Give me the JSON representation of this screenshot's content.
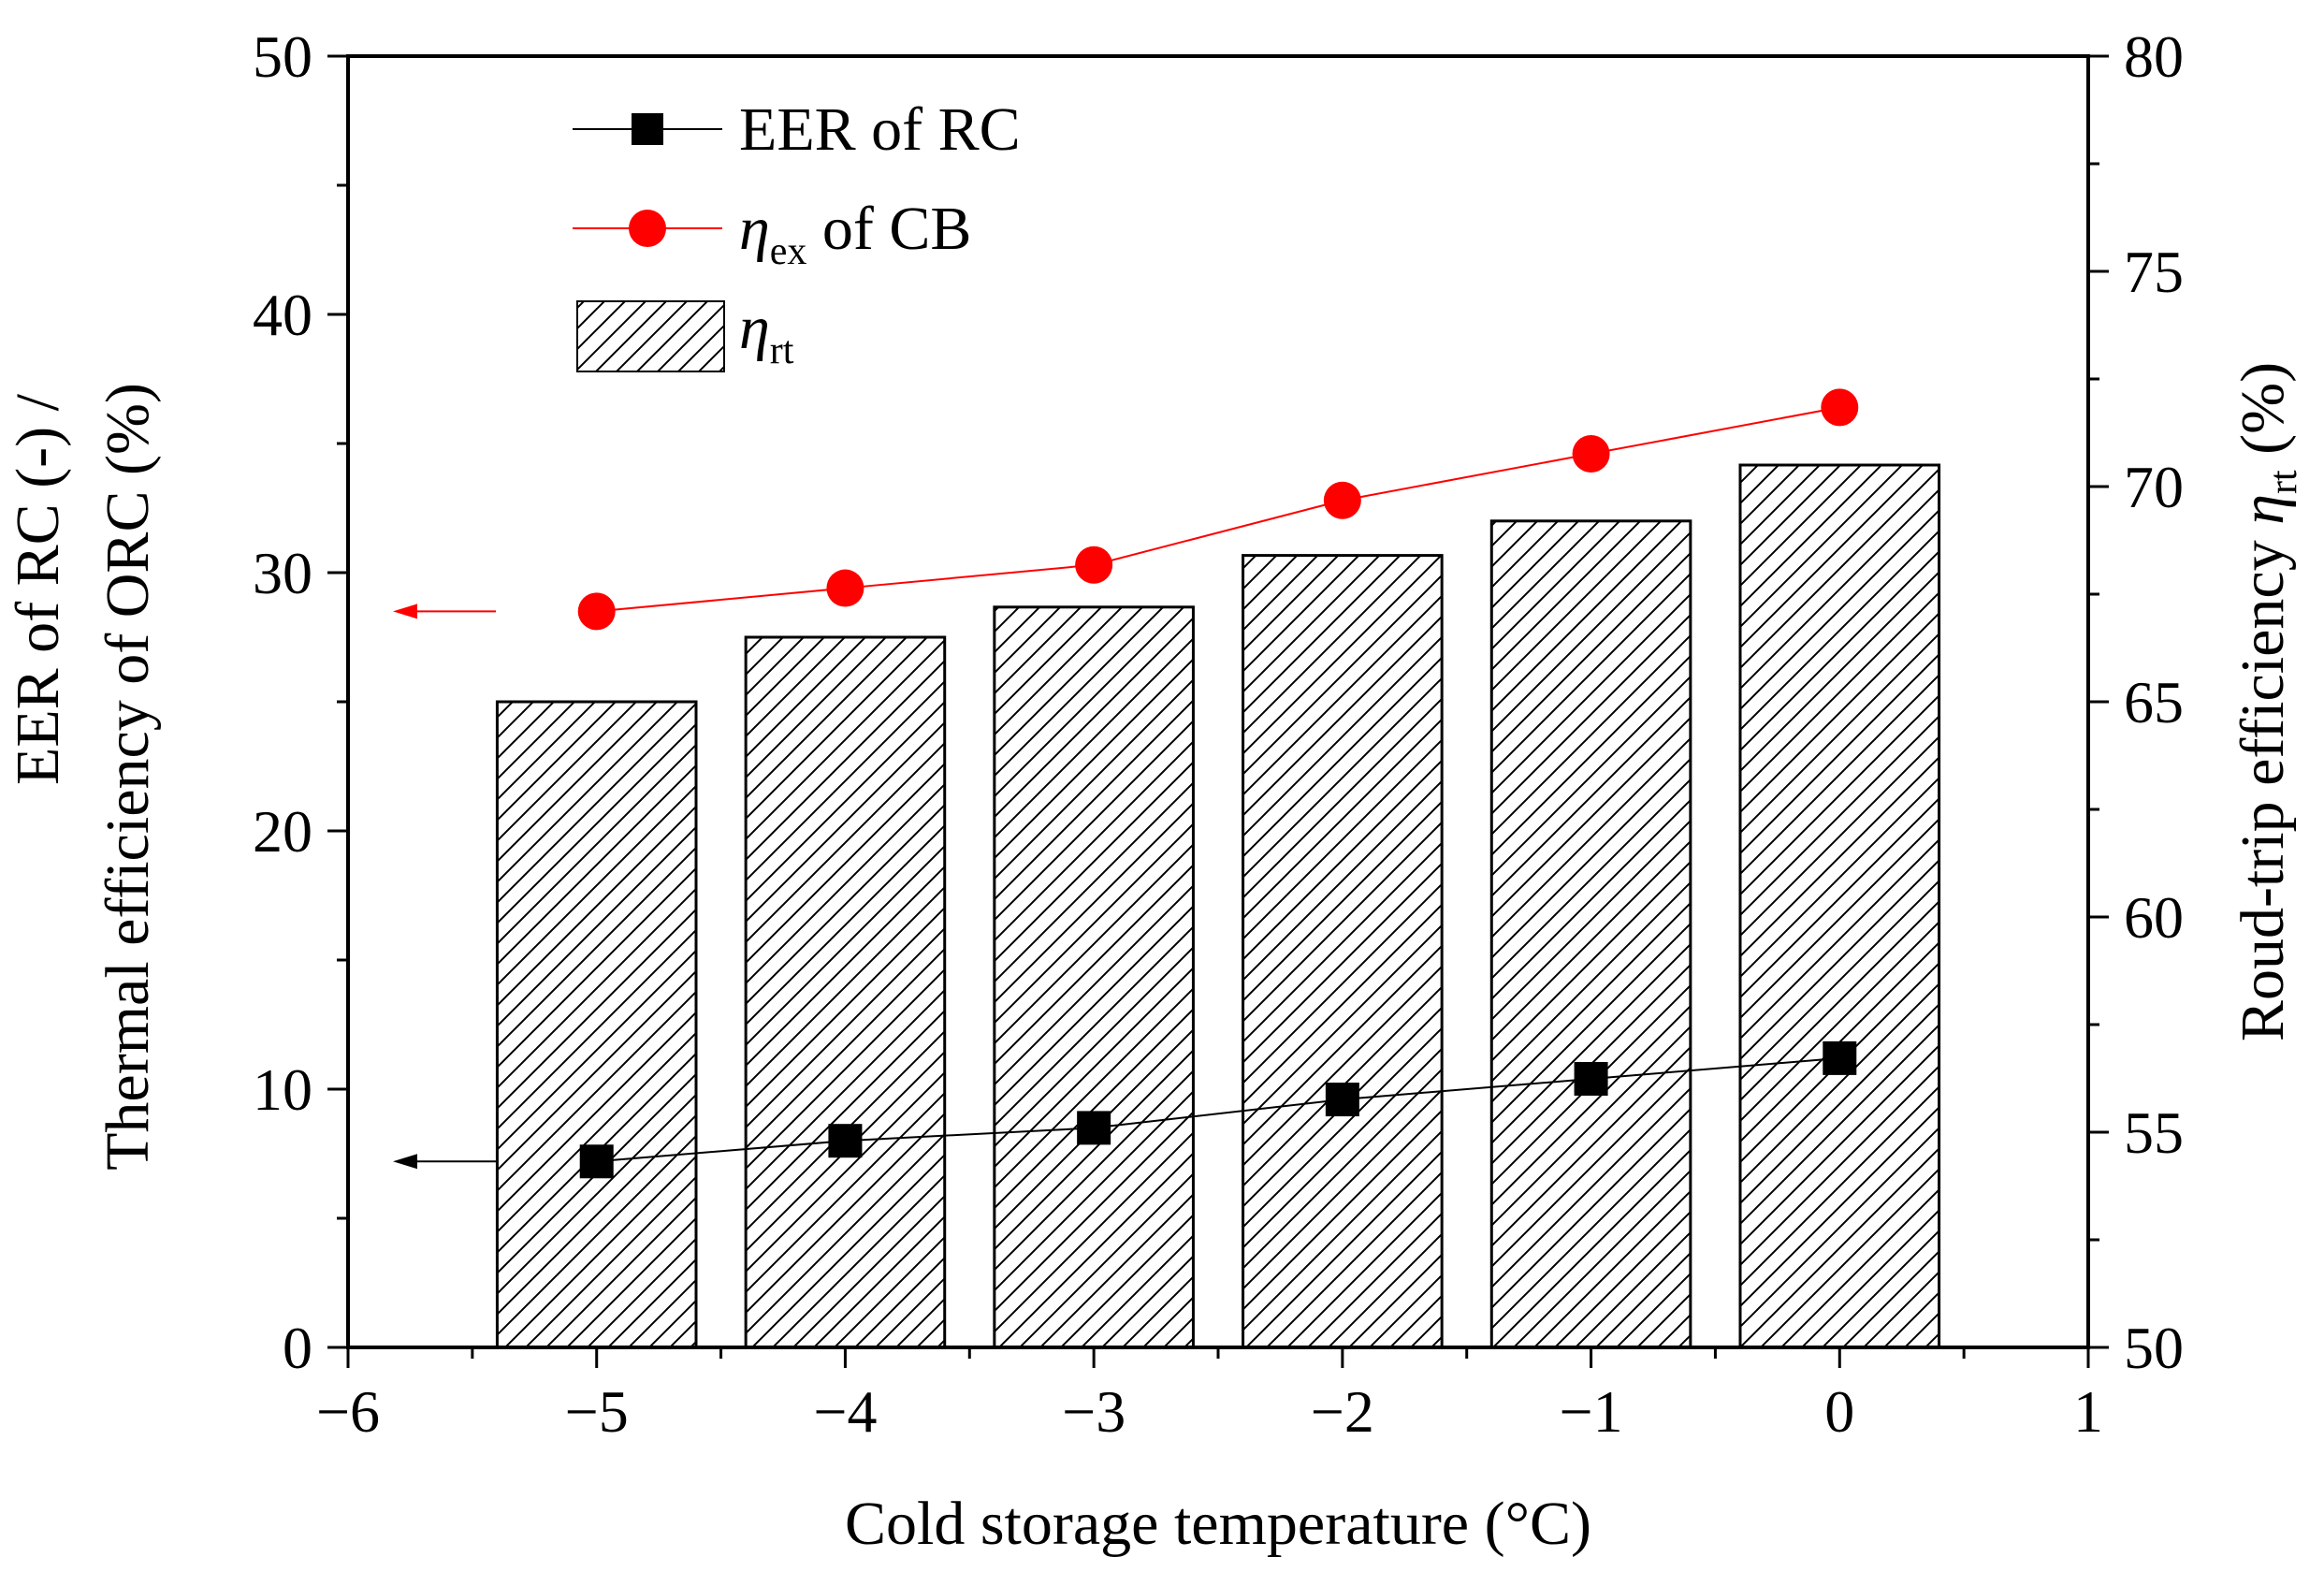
{
  "chart_data": {
    "type": "bar+line",
    "x_axis": {
      "label": "Cold storage temperature (°C)",
      "range": [
        -6,
        1
      ],
      "ticks": [
        -6,
        -5,
        -4,
        -3,
        -2,
        -1,
        0,
        1
      ],
      "tick_labels": [
        "−6",
        "−5",
        "−4",
        "−3",
        "−2",
        "−1",
        "0",
        "1"
      ]
    },
    "y_left": {
      "label_line1": "EER of RC (-) /",
      "label_line2": "Thermal efficiency of ORC (%)",
      "range": [
        0,
        50
      ],
      "ticks": [
        0,
        10,
        20,
        30,
        40,
        50
      ]
    },
    "y_right": {
      "label_main": "Roud-trip efficiency ",
      "label_symbol": "η",
      "label_sub": "rt",
      "label_unit": " (%)",
      "range": [
        50,
        80
      ],
      "ticks": [
        50,
        55,
        60,
        65,
        70,
        75,
        80
      ]
    },
    "x": [
      -5,
      -4,
      -3,
      -2,
      -1,
      0
    ],
    "series": [
      {
        "name": "EER of RC",
        "axis": "left",
        "kind": "line",
        "marker": "square",
        "color": "#000000",
        "values": [
          7.2,
          8.0,
          8.5,
          9.6,
          10.4,
          11.2
        ]
      },
      {
        "name": "η_ex of CB",
        "axis": "left",
        "kind": "line",
        "marker": "circle",
        "color": "#ff0000",
        "values": [
          28.5,
          29.4,
          30.3,
          32.8,
          34.6,
          36.4
        ]
      },
      {
        "name": "η_rt",
        "axis": "right",
        "kind": "bar",
        "pattern": "diagonal-hatch",
        "values": [
          65.0,
          66.5,
          67.2,
          68.4,
          69.2,
          70.5
        ]
      }
    ],
    "legend": {
      "position": "top-left",
      "entries": [
        {
          "prefix": "",
          "symbol": "",
          "sub": "",
          "suffix": "EER of RC"
        },
        {
          "prefix": "",
          "symbol": "η",
          "sub": "ex",
          "suffix": " of CB"
        },
        {
          "prefix": "",
          "symbol": "η",
          "sub": "rt",
          "suffix": ""
        }
      ]
    },
    "axis_arrows": [
      {
        "series": "η_ex of CB",
        "direction": "left",
        "color": "#ff0000"
      },
      {
        "series": "EER of RC",
        "direction": "left",
        "color": "#000000"
      }
    ],
    "grid": false
  }
}
